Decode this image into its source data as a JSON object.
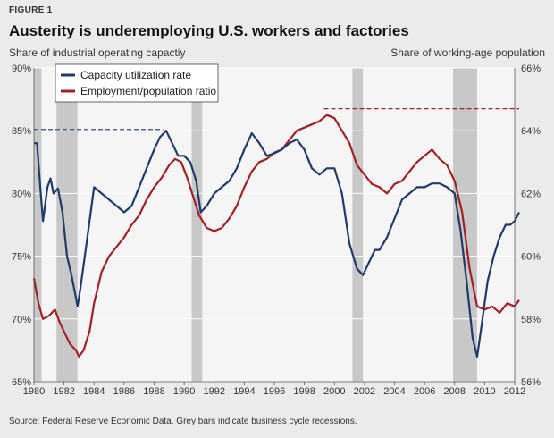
{
  "figure_label": "FIGURE 1",
  "title": "Austerity is underemploying U.S. workers and factories",
  "left_axis_title": "Share of industrial operating capactiy",
  "right_axis_title": "Share of working-age population",
  "source": "Source: Federal Reserve Economic Data. Grey bars indicate business cycle recessions.",
  "colors": {
    "capacity": "#1f3a6b",
    "employment": "#a31f24",
    "recession": "#c8c8c8",
    "grid": "#ffffff",
    "background": "#ebebeb"
  },
  "chart_data": {
    "type": "line",
    "title": "Austerity is underemploying U.S. workers and factories",
    "xlabel": "",
    "ylabel": "Share of industrial operating capactiy",
    "y2label": "Share of working-age population",
    "xlim": [
      1980,
      2012
    ],
    "ylim": [
      65,
      90
    ],
    "y2lim": [
      56,
      66
    ],
    "x_ticks": [
      1980,
      1982,
      1984,
      1986,
      1988,
      1990,
      1992,
      1994,
      1996,
      1998,
      2000,
      2002,
      2004,
      2006,
      2008,
      2010,
      2012
    ],
    "y_ticks": [
      65,
      70,
      75,
      80,
      85,
      90
    ],
    "y_tick_labels": [
      "65%",
      "70%",
      "75%",
      "80%",
      "85%",
      "90%"
    ],
    "y2_ticks": [
      56,
      58,
      60,
      62,
      64,
      66
    ],
    "y2_tick_labels": [
      "56%",
      "58%",
      "60%",
      "62%",
      "64%",
      "66%"
    ],
    "grid": true,
    "legend_position": "top-left",
    "recessions": [
      [
        1980.0,
        1980.5
      ],
      [
        1981.5,
        1982.9
      ],
      [
        1990.5,
        1991.2
      ],
      [
        2001.2,
        2001.9
      ],
      [
        2007.9,
        2009.5
      ]
    ],
    "reference_lines": [
      {
        "series": "Capacity utilization rate",
        "axis": "left",
        "value": 85.1,
        "x_start": 1980,
        "x_end": 1988.6,
        "style": "dashed"
      },
      {
        "series": "Employment/population ratio",
        "axis": "right",
        "value": 64.7,
        "x_start": 1999.3,
        "x_end": 2012.3,
        "style": "dashed"
      }
    ],
    "series": [
      {
        "name": "Capacity utilization rate",
        "axis": "left",
        "x": [
          1980.0,
          1980.2,
          1980.45,
          1980.6,
          1980.9,
          1981.1,
          1981.3,
          1981.6,
          1981.9,
          1982.2,
          1982.5,
          1982.9,
          1983.1,
          1983.5,
          1984.0,
          1984.5,
          1985.0,
          1985.5,
          1986.0,
          1986.5,
          1987.0,
          1987.5,
          1988.0,
          1988.4,
          1988.8,
          1989.2,
          1989.6,
          1990.0,
          1990.4,
          1990.8,
          1991.1,
          1991.5,
          1992.0,
          1992.5,
          1993.0,
          1993.5,
          1994.0,
          1994.5,
          1995.0,
          1995.5,
          1996.0,
          1996.5,
          1997.0,
          1997.5,
          1998.0,
          1998.5,
          1999.0,
          1999.5,
          2000.0,
          2000.5,
          2001.0,
          2001.5,
          2001.9,
          2002.3,
          2002.7,
          2003.0,
          2003.5,
          2004.0,
          2004.5,
          2005.0,
          2005.5,
          2006.0,
          2006.5,
          2007.0,
          2007.5,
          2008.0,
          2008.4,
          2008.8,
          2009.2,
          2009.5,
          2009.8,
          2010.2,
          2010.6,
          2011.0,
          2011.4,
          2011.7,
          2012.0,
          2012.3
        ],
        "values": [
          84.0,
          84.0,
          80.0,
          77.8,
          80.5,
          81.2,
          80.0,
          80.4,
          78.5,
          75.0,
          73.5,
          71.0,
          72.5,
          76.0,
          80.5,
          80.0,
          79.5,
          79.0,
          78.5,
          79.0,
          80.5,
          82.0,
          83.5,
          84.5,
          85.0,
          84.0,
          83.0,
          83.0,
          82.5,
          81.0,
          78.5,
          79.0,
          80.0,
          80.5,
          81.0,
          82.0,
          83.5,
          84.8,
          84.0,
          83.0,
          83.2,
          83.5,
          84.0,
          84.3,
          83.5,
          82.0,
          81.5,
          82.0,
          82.0,
          80.0,
          76.0,
          74.0,
          73.5,
          74.5,
          75.5,
          75.5,
          76.5,
          78.0,
          79.5,
          80.0,
          80.5,
          80.5,
          80.8,
          80.8,
          80.5,
          80.0,
          77.0,
          73.0,
          68.5,
          67.0,
          69.5,
          73.0,
          75.0,
          76.5,
          77.5,
          77.5,
          77.8,
          78.5
        ]
      },
      {
        "name": "Employment/population ratio",
        "axis": "right",
        "x": [
          1980.0,
          1980.3,
          1980.6,
          1981.0,
          1981.4,
          1981.7,
          1982.0,
          1982.4,
          1982.8,
          1983.0,
          1983.3,
          1983.7,
          1984.0,
          1984.5,
          1985.0,
          1985.5,
          1986.0,
          1986.5,
          1987.0,
          1987.5,
          1988.0,
          1988.5,
          1989.0,
          1989.4,
          1989.8,
          1990.2,
          1990.6,
          1991.0,
          1991.5,
          1992.0,
          1992.5,
          1993.0,
          1993.5,
          1994.0,
          1994.5,
          1995.0,
          1995.5,
          1996.0,
          1996.5,
          1997.0,
          1997.5,
          1998.0,
          1998.5,
          1999.0,
          1999.5,
          2000.0,
          2000.5,
          2001.0,
          2001.5,
          2002.0,
          2002.5,
          2003.0,
          2003.5,
          2004.0,
          2004.5,
          2005.0,
          2005.5,
          2006.0,
          2006.5,
          2007.0,
          2007.5,
          2008.0,
          2008.5,
          2009.0,
          2009.5,
          2010.0,
          2010.5,
          2011.0,
          2011.5,
          2012.0,
          2012.3
        ],
        "values": [
          59.3,
          58.5,
          58.0,
          58.1,
          58.3,
          57.9,
          57.6,
          57.2,
          57.0,
          56.8,
          57.0,
          57.6,
          58.5,
          59.5,
          60.0,
          60.3,
          60.6,
          61.0,
          61.3,
          61.8,
          62.2,
          62.5,
          62.9,
          63.1,
          63.0,
          62.5,
          61.9,
          61.3,
          60.9,
          60.8,
          60.9,
          61.2,
          61.6,
          62.2,
          62.7,
          63.0,
          63.1,
          63.3,
          63.4,
          63.7,
          64.0,
          64.1,
          64.2,
          64.3,
          64.5,
          64.4,
          64.0,
          63.6,
          62.9,
          62.6,
          62.3,
          62.2,
          62.0,
          62.3,
          62.4,
          62.7,
          63.0,
          63.2,
          63.4,
          63.1,
          62.9,
          62.4,
          61.4,
          59.6,
          58.4,
          58.3,
          58.4,
          58.2,
          58.5,
          58.4,
          58.6
        ]
      }
    ]
  }
}
